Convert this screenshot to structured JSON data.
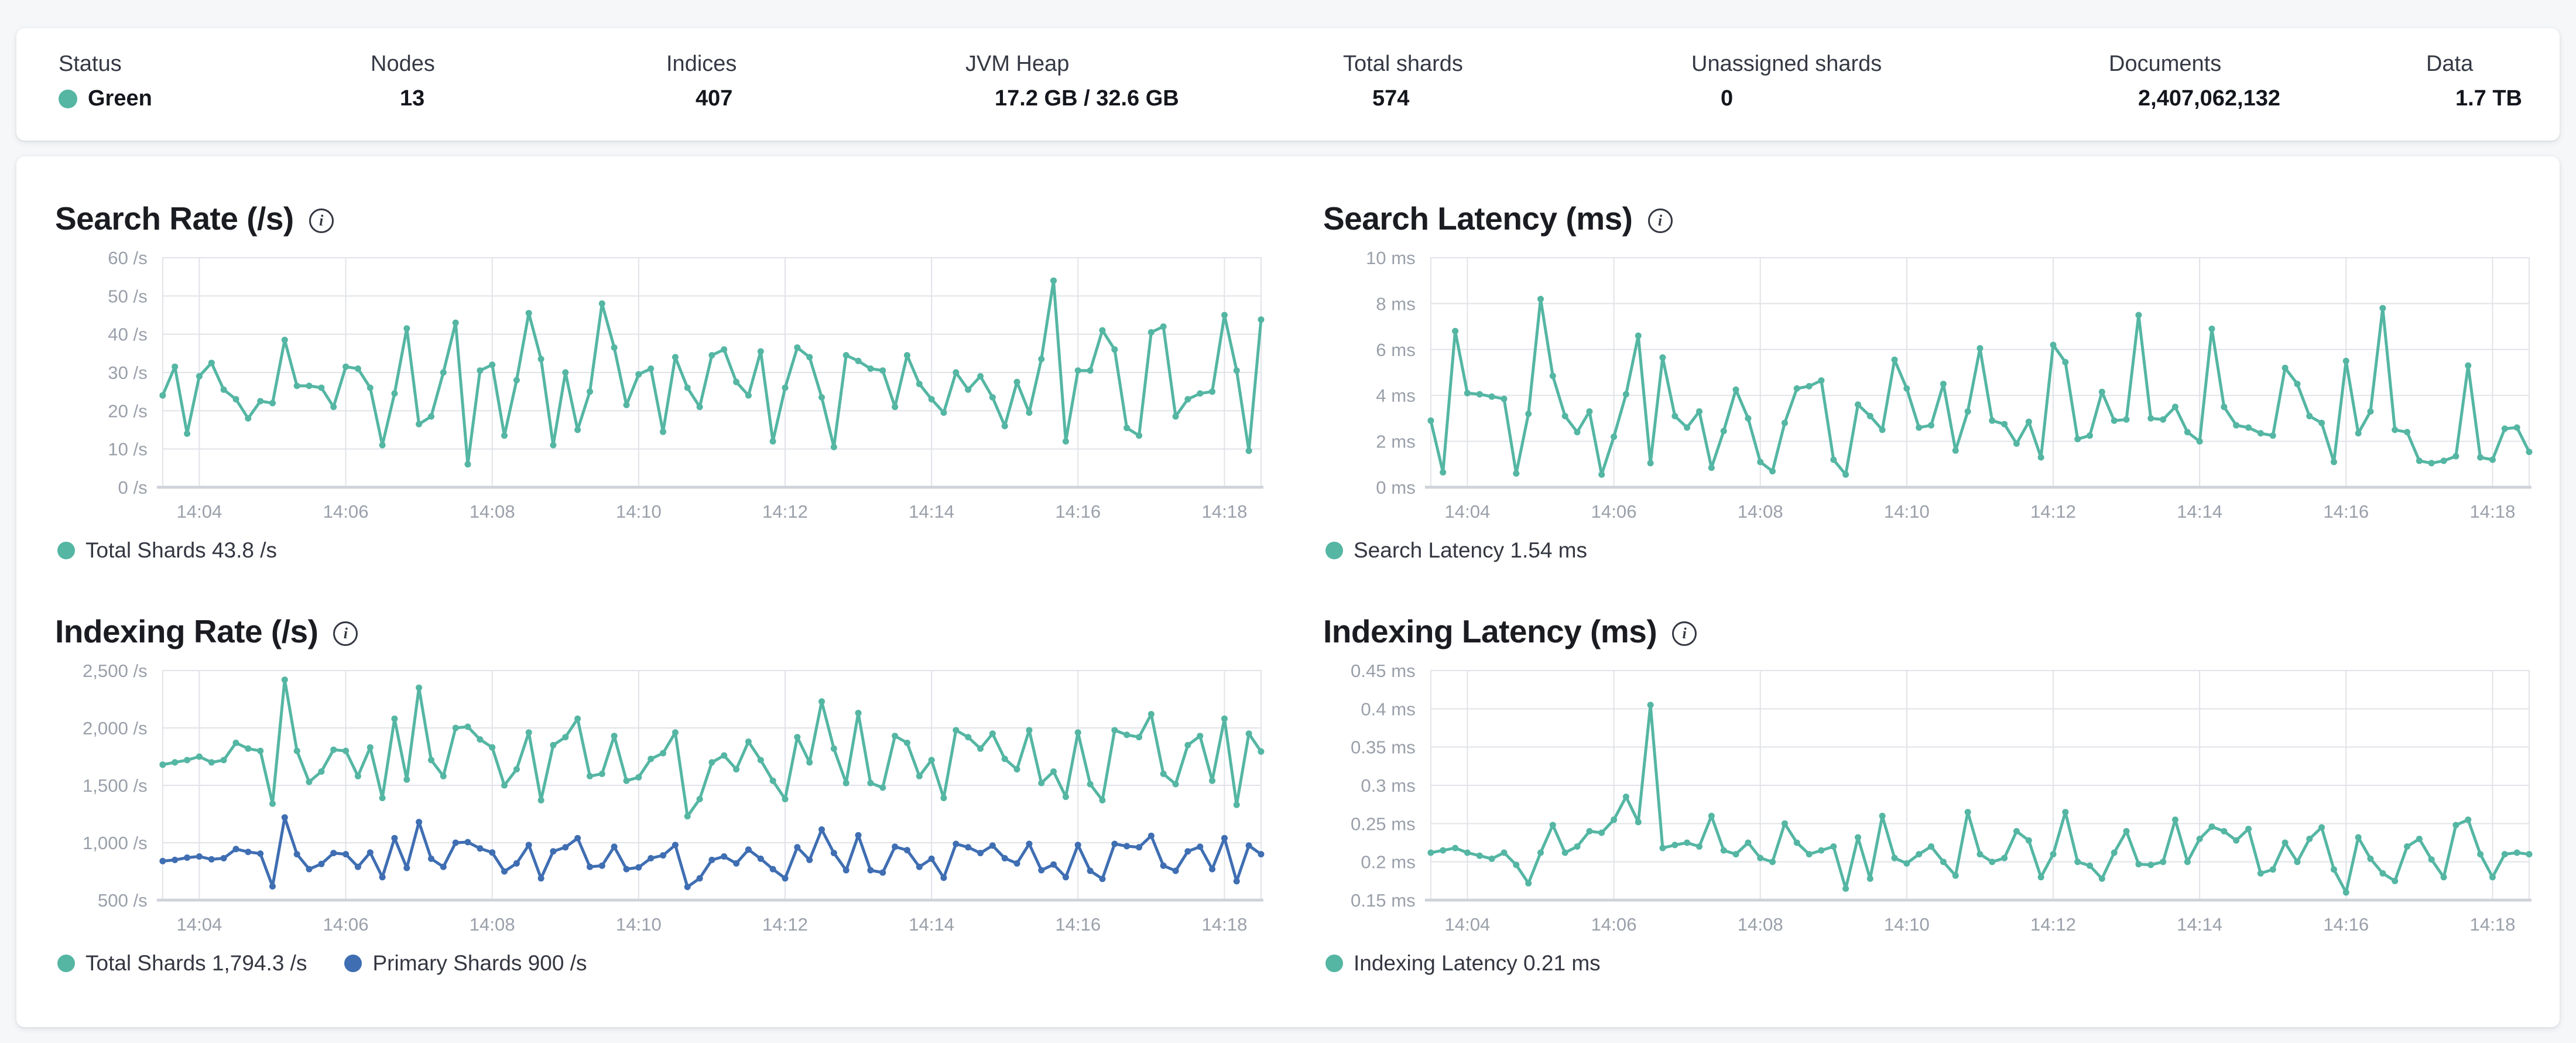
{
  "colors": {
    "teal": "#54B6A3",
    "blue": "#3F6EB2",
    "grid": "#E1E3E8",
    "axis_line": "#D0D3D9",
    "axis_text": "#9AA0AA",
    "status_green": "#54B6A3",
    "text_dark": "#1A1C21",
    "text_label": "#353944"
  },
  "status_bar": {
    "items": [
      {
        "label": "Status",
        "value": "Green",
        "has_dot": true
      },
      {
        "label": "Nodes",
        "value": "13"
      },
      {
        "label": "Indices",
        "value": "407"
      },
      {
        "label": "JVM Heap",
        "value": "17.2 GB / 32.6 GB"
      },
      {
        "label": "Total shards",
        "value": "574"
      },
      {
        "label": "Unassigned shards",
        "value": "0"
      },
      {
        "label": "Documents",
        "value": "2,407,062,132"
      },
      {
        "label": "Data",
        "value": "1.7 TB"
      }
    ]
  },
  "x_axis": {
    "labels": [
      "14:04",
      "14:06",
      "14:08",
      "14:10",
      "14:12",
      "14:14",
      "14:16",
      "14:18"
    ],
    "offsets_s": [
      30,
      150,
      270,
      390,
      510,
      630,
      750,
      870
    ],
    "total_s": 900,
    "interval_s": 10
  },
  "chart_data": [
    {
      "type": "line",
      "name": "search-rate",
      "title": "Search Rate (/s)",
      "ylim": [
        0,
        60
      ],
      "y_ticks": [
        {
          "value": 60,
          "label": "60 /s"
        },
        {
          "value": 50,
          "label": "50 /s"
        },
        {
          "value": 40,
          "label": "40 /s"
        },
        {
          "value": 30,
          "label": "30 /s"
        },
        {
          "value": 20,
          "label": "20 /s"
        },
        {
          "value": 10,
          "label": "10 /s"
        },
        {
          "value": 0,
          "label": "0 /s"
        }
      ],
      "legend": [
        {
          "label": "Total Shards 43.8 /s",
          "color": "#54B6A3"
        }
      ],
      "series": [
        {
          "name": "Total Shards",
          "color": "#54B6A3",
          "values": [
            24,
            31.5,
            14,
            29,
            32.5,
            25.5,
            23,
            18,
            22.5,
            22,
            38.5,
            26.5,
            26.5,
            26,
            21,
            31.5,
            31,
            26,
            11,
            24.5,
            41.5,
            16.5,
            18.5,
            30,
            43,
            6,
            30.5,
            32,
            13.5,
            28,
            45.5,
            33.5,
            11,
            30,
            15,
            25,
            48,
            36.5,
            21.5,
            29.5,
            31,
            14.5,
            34,
            26,
            21,
            34.5,
            36,
            27.5,
            24,
            35.5,
            12,
            26,
            36.5,
            34,
            23.5,
            10.5,
            34.5,
            33,
            31,
            30.5,
            21,
            34.5,
            27,
            23,
            19.5,
            30,
            25.5,
            29,
            23.5,
            16,
            27.5,
            19.5,
            33.5,
            54,
            12,
            30.5,
            30.5,
            41,
            36,
            15.5,
            13.5,
            40.5,
            42,
            18.5,
            23,
            24.5,
            25,
            45,
            30.5,
            9.5,
            43.8
          ]
        }
      ]
    },
    {
      "type": "line",
      "name": "search-latency",
      "title": "Search Latency (ms)",
      "ylim": [
        0,
        10
      ],
      "y_ticks": [
        {
          "value": 10,
          "label": "10 ms"
        },
        {
          "value": 8,
          "label": "8 ms"
        },
        {
          "value": 6,
          "label": "6 ms"
        },
        {
          "value": 4,
          "label": "4 ms"
        },
        {
          "value": 2,
          "label": "2 ms"
        },
        {
          "value": 0,
          "label": "0 ms"
        }
      ],
      "legend": [
        {
          "label": "Search Latency 1.54 ms",
          "color": "#54B6A3"
        }
      ],
      "series": [
        {
          "name": "Search Latency",
          "color": "#54B6A3",
          "values": [
            2.9,
            0.65,
            6.8,
            4.1,
            4.05,
            3.95,
            3.85,
            0.6,
            3.2,
            8.2,
            4.85,
            3.1,
            2.4,
            3.3,
            0.55,
            2.2,
            4.05,
            6.6,
            1.05,
            5.65,
            3.1,
            2.6,
            3.3,
            0.85,
            2.45,
            4.25,
            3.0,
            1.1,
            0.7,
            2.8,
            4.3,
            4.4,
            4.65,
            1.2,
            0.55,
            3.6,
            3.1,
            2.5,
            5.55,
            4.3,
            2.6,
            2.7,
            4.5,
            1.6,
            3.3,
            6.05,
            2.9,
            2.75,
            1.9,
            2.85,
            1.3,
            6.2,
            5.45,
            2.1,
            2.25,
            4.15,
            2.9,
            2.95,
            7.5,
            3.0,
            2.95,
            3.5,
            2.4,
            2.0,
            6.9,
            3.5,
            2.7,
            2.6,
            2.35,
            2.25,
            5.2,
            4.5,
            3.1,
            2.8,
            1.1,
            5.5,
            2.35,
            3.3,
            7.8,
            2.5,
            2.4,
            1.15,
            1.05,
            1.15,
            1.35,
            5.3,
            1.3,
            1.2,
            2.55,
            2.6,
            1.54
          ]
        }
      ]
    },
    {
      "type": "line",
      "name": "indexing-rate",
      "title": "Indexing Rate (/s)",
      "ylim": [
        500,
        2500
      ],
      "y_ticks": [
        {
          "value": 2500,
          "label": "2,500 /s"
        },
        {
          "value": 2000,
          "label": "2,000 /s"
        },
        {
          "value": 1500,
          "label": "1,500 /s"
        },
        {
          "value": 1000,
          "label": "1,000 /s"
        },
        {
          "value": 500,
          "label": "500 /s"
        }
      ],
      "legend": [
        {
          "label": "Total Shards 1,794.3 /s",
          "color": "#54B6A3"
        },
        {
          "label": "Primary Shards 900 /s",
          "color": "#3F6EB2"
        }
      ],
      "series": [
        {
          "name": "Total Shards",
          "color": "#54B6A3",
          "values": [
            1680,
            1700,
            1720,
            1750,
            1700,
            1720,
            1870,
            1820,
            1800,
            1340,
            2420,
            1800,
            1530,
            1620,
            1810,
            1800,
            1580,
            1830,
            1390,
            2080,
            1550,
            2350,
            1720,
            1580,
            2000,
            2010,
            1900,
            1830,
            1500,
            1640,
            1960,
            1370,
            1850,
            1920,
            2080,
            1580,
            1600,
            1930,
            1540,
            1570,
            1730,
            1780,
            1960,
            1230,
            1380,
            1700,
            1760,
            1640,
            1880,
            1720,
            1540,
            1380,
            1920,
            1700,
            2230,
            1820,
            1520,
            2130,
            1520,
            1480,
            1930,
            1870,
            1580,
            1720,
            1390,
            1980,
            1920,
            1820,
            1950,
            1730,
            1640,
            1980,
            1520,
            1620,
            1400,
            1960,
            1510,
            1370,
            1980,
            1940,
            1920,
            2120,
            1600,
            1510,
            1850,
            1930,
            1540,
            2080,
            1330,
            1950,
            1794.3
          ]
        },
        {
          "name": "Primary Shards",
          "color": "#3F6EB2",
          "values": [
            840,
            850,
            870,
            880,
            855,
            865,
            945,
            920,
            905,
            620,
            1220,
            900,
            770,
            815,
            910,
            900,
            790,
            915,
            700,
            1040,
            780,
            1180,
            860,
            790,
            1000,
            1005,
            950,
            915,
            750,
            820,
            980,
            690,
            925,
            960,
            1040,
            790,
            800,
            965,
            770,
            785,
            865,
            890,
            980,
            615,
            690,
            850,
            880,
            820,
            940,
            860,
            770,
            690,
            960,
            850,
            1115,
            910,
            760,
            1065,
            760,
            740,
            965,
            935,
            790,
            860,
            695,
            990,
            960,
            910,
            975,
            865,
            820,
            990,
            760,
            810,
            700,
            980,
            755,
            685,
            990,
            970,
            960,
            1060,
            800,
            755,
            925,
            965,
            770,
            1040,
            665,
            975,
            900
          ]
        }
      ]
    },
    {
      "type": "line",
      "name": "indexing-latency",
      "title": "Indexing Latency (ms)",
      "ylim": [
        0.15,
        0.45
      ],
      "y_ticks": [
        {
          "value": 0.45,
          "label": "0.45 ms"
        },
        {
          "value": 0.4,
          "label": "0.4 ms"
        },
        {
          "value": 0.35,
          "label": "0.35 ms"
        },
        {
          "value": 0.3,
          "label": "0.3 ms"
        },
        {
          "value": 0.25,
          "label": "0.25 ms"
        },
        {
          "value": 0.2,
          "label": "0.2 ms"
        },
        {
          "value": 0.15,
          "label": "0.15 ms"
        }
      ],
      "legend": [
        {
          "label": "Indexing Latency 0.21 ms",
          "color": "#54B6A3"
        }
      ],
      "series": [
        {
          "name": "Indexing Latency",
          "color": "#54B6A3",
          "values": [
            0.212,
            0.215,
            0.218,
            0.212,
            0.208,
            0.204,
            0.212,
            0.196,
            0.172,
            0.212,
            0.248,
            0.212,
            0.22,
            0.24,
            0.238,
            0.255,
            0.285,
            0.252,
            0.405,
            0.218,
            0.222,
            0.225,
            0.22,
            0.26,
            0.215,
            0.21,
            0.225,
            0.205,
            0.2,
            0.25,
            0.225,
            0.21,
            0.215,
            0.22,
            0.165,
            0.232,
            0.178,
            0.26,
            0.205,
            0.198,
            0.21,
            0.22,
            0.2,
            0.182,
            0.265,
            0.21,
            0.2,
            0.205,
            0.24,
            0.228,
            0.18,
            0.21,
            0.265,
            0.2,
            0.195,
            0.178,
            0.212,
            0.24,
            0.197,
            0.196,
            0.2,
            0.255,
            0.2,
            0.23,
            0.246,
            0.24,
            0.228,
            0.243,
            0.185,
            0.19,
            0.225,
            0.2,
            0.23,
            0.245,
            0.19,
            0.16,
            0.232,
            0.204,
            0.185,
            0.175,
            0.22,
            0.23,
            0.203,
            0.18,
            0.248,
            0.255,
            0.21,
            0.18,
            0.21,
            0.212,
            0.21
          ]
        }
      ]
    }
  ]
}
